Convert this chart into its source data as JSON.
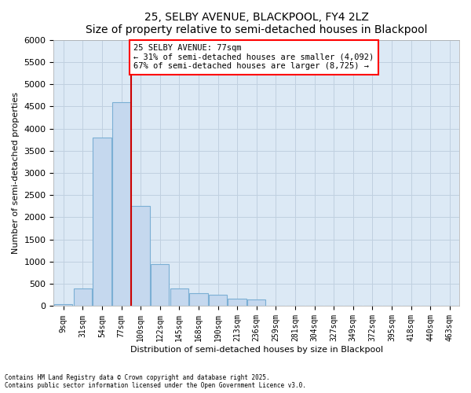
{
  "title": "25, SELBY AVENUE, BLACKPOOL, FY4 2LZ",
  "subtitle": "Size of property relative to semi-detached houses in Blackpool",
  "xlabel": "Distribution of semi-detached houses by size in Blackpool",
  "ylabel": "Number of semi-detached properties",
  "categories": [
    "9sqm",
    "31sqm",
    "54sqm",
    "77sqm",
    "100sqm",
    "122sqm",
    "145sqm",
    "168sqm",
    "190sqm",
    "213sqm",
    "236sqm",
    "259sqm",
    "281sqm",
    "304sqm",
    "327sqm",
    "349sqm",
    "372sqm",
    "395sqm",
    "418sqm",
    "440sqm",
    "463sqm"
  ],
  "values": [
    50,
    400,
    3800,
    4600,
    2250,
    950,
    400,
    300,
    250,
    175,
    150,
    0,
    0,
    0,
    0,
    0,
    0,
    0,
    0,
    0,
    0
  ],
  "bar_color": "#c5d8ee",
  "bar_edge_color": "#7bafd4",
  "vline_color": "#cc0000",
  "annotation_title": "25 SELBY AVENUE: 77sqm",
  "annotation_line1": "← 31% of semi-detached houses are smaller (4,092)",
  "annotation_line2": "67% of semi-detached houses are larger (8,725) →",
  "ylim": [
    0,
    6000
  ],
  "yticks": [
    0,
    500,
    1000,
    1500,
    2000,
    2500,
    3000,
    3500,
    4000,
    4500,
    5000,
    5500,
    6000
  ],
  "background_color": "#dce9f5",
  "grid_color": "#c0d0e0",
  "footer1": "Contains HM Land Registry data © Crown copyright and database right 2025.",
  "footer2": "Contains public sector information licensed under the Open Government Licence v3.0."
}
